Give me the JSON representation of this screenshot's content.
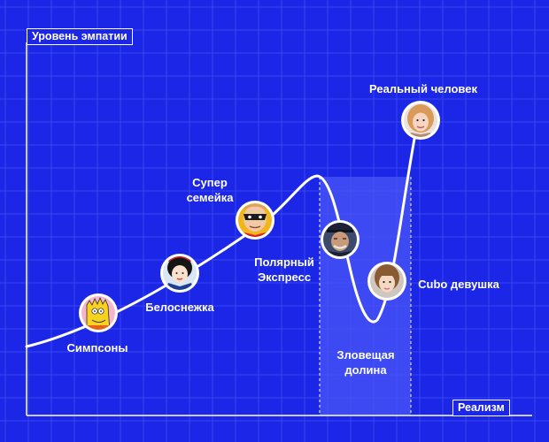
{
  "axes": {
    "y_label": "Уровень эмпатии",
    "x_label": "Реализм"
  },
  "valley": {
    "label": "Зловещая\nдолина"
  },
  "points": [
    {
      "label": "Симпсоны",
      "icon": "bart-simpson-avatar-icon"
    },
    {
      "label": "Белоснежка",
      "icon": "snow-white-avatar-icon"
    },
    {
      "label": "Супер\nсемейка",
      "icon": "mr-incredible-avatar-icon"
    },
    {
      "label": "Полярный\nЭкспресс",
      "icon": "polar-express-avatar-icon"
    },
    {
      "label": "Cubo девушка",
      "icon": "cubo-girl-avatar-icon"
    },
    {
      "label": "Реальный человек",
      "icon": "real-person-avatar-icon"
    }
  ],
  "colors": {
    "background": "#1b26e6",
    "grid": "#3a45f0",
    "curve": "#ffffff",
    "valley_fill": "#4a55f5"
  }
}
